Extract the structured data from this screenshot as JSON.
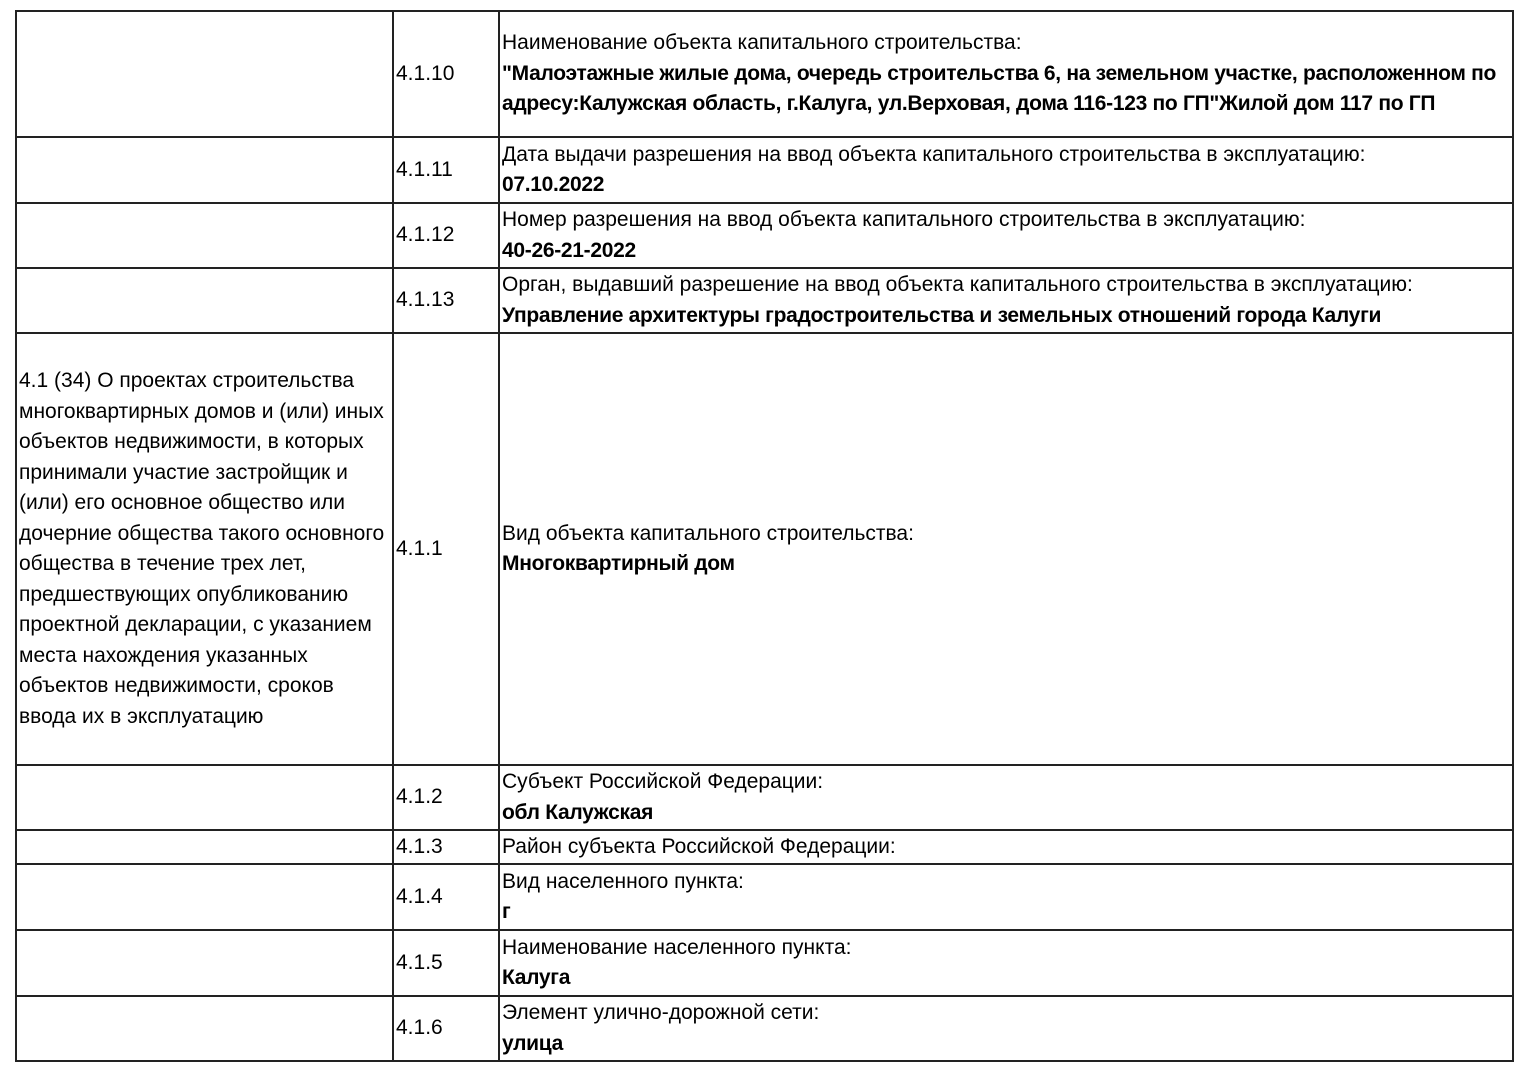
{
  "rows": [
    {
      "section": "",
      "num": "4.1.10",
      "label": "Наименование объекта капитального строительства:",
      "value": "\"Малоэтажные жилые дома, очередь строительства 6, на земельном участке, расположенном по адресу:Калужская область, г.Калуга, ул.Верховая, дома 116-123 по ГП\"Жилой дом 117 по ГП"
    },
    {
      "section": "",
      "num": "4.1.11",
      "label": "Дата выдачи разрешения на ввод объекта капитального строительства в эксплуатацию:",
      "value": "07.10.2022"
    },
    {
      "section": "",
      "num": "4.1.12",
      "label": "Номер разрешения на ввод объекта капитального строительства в эксплуатацию:",
      "value": "40-26-21-2022"
    },
    {
      "section": "",
      "num": "4.1.13",
      "label": "Орган, выдавший разрешение на ввод объекта капитального строительства в эксплуатацию:",
      "value": "Управление архитектуры градостроительства и земельных отношений города Калуги"
    },
    {
      "section": "4.1 (34) О проектах строительства многоквартирных домов и (или) иных объектов недвижимости, в которых принимали участие застройщик и (или) его основное общество или дочерние общества такого основного общества в течение трех лет, предшествующих опубликованию проектной декларации, с указанием места нахождения указанных объектов недвижимости, сроков ввода их в эксплуатацию",
      "num": "4.1.1",
      "label": "Вид объекта капитального строительства:",
      "value": "Многоквартирный дом"
    },
    {
      "section": "",
      "num": "4.1.2",
      "label": "Субъект Российской Федерации:",
      "value": "обл Калужская"
    },
    {
      "section": "",
      "num": "4.1.3",
      "label": "Район субъекта Российской Федерации:",
      "value": ""
    },
    {
      "section": "",
      "num": "4.1.4",
      "label": "Вид населенного пункта:",
      "value": "г"
    },
    {
      "section": "",
      "num": "4.1.5",
      "label": "Наименование населенного пункта:",
      "value": "Калуга"
    },
    {
      "section": "",
      "num": "4.1.6",
      "label": "Элемент улично-дорожной сети:",
      "value": "улица"
    }
  ]
}
